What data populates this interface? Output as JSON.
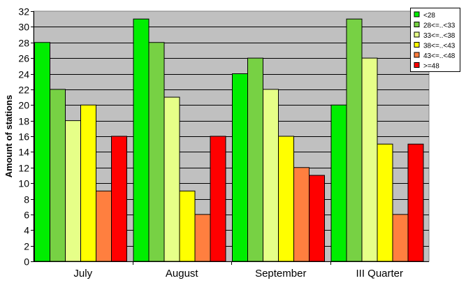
{
  "chart_data": {
    "type": "bar",
    "title": "",
    "xlabel": "",
    "ylabel": "Amount of stations",
    "ylim": [
      0,
      32
    ],
    "ytick_step": 2,
    "grid": true,
    "legend_position": "top-right",
    "plot_background": "#c0c0c0",
    "categories": [
      "July",
      "August",
      "September",
      "III Quarter"
    ],
    "series": [
      {
        "name": "<28",
        "color": "#00ee00",
        "values": [
          28,
          31,
          24,
          20
        ]
      },
      {
        "name": "28<=..<33",
        "color": "#77d144",
        "values": [
          22,
          28,
          26,
          31
        ]
      },
      {
        "name": "33<=..<38",
        "color": "#e6ff88",
        "values": [
          18,
          21,
          22,
          26
        ]
      },
      {
        "name": "38<=..<43",
        "color": "#ffff00",
        "values": [
          20,
          9,
          16,
          15
        ]
      },
      {
        "name": "43<=..<48",
        "color": "#ff7f3f",
        "values": [
          9,
          6,
          12,
          6
        ]
      },
      {
        "name": ">=48",
        "color": "#ff0000",
        "values": [
          16,
          16,
          11,
          15
        ]
      }
    ]
  }
}
